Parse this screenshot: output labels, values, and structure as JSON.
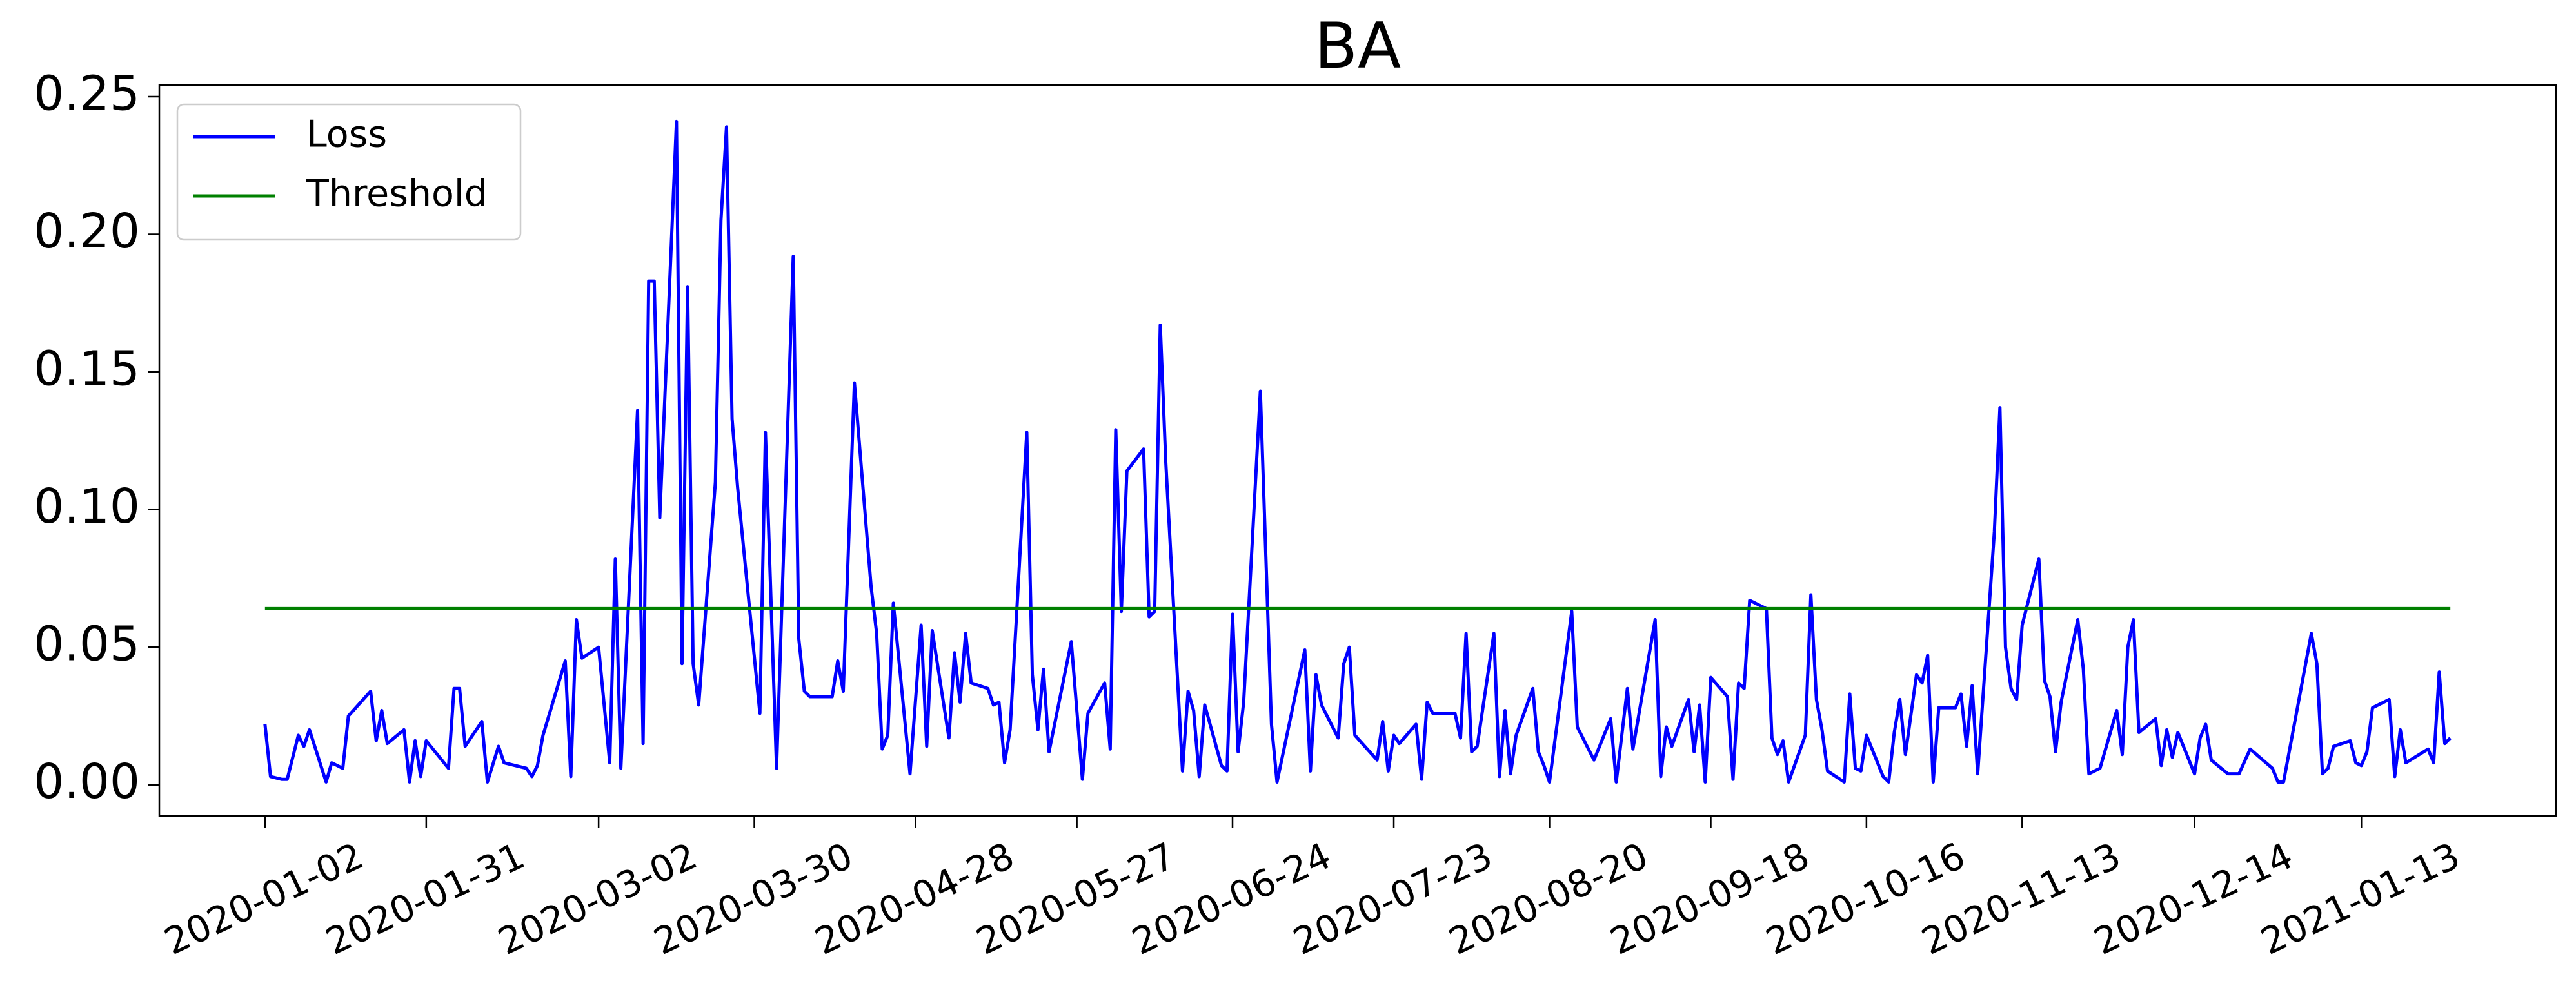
{
  "chart_data": {
    "type": "line",
    "title": "BA",
    "xlim": [
      "2019-12-14",
      "2021-02-17"
    ],
    "ylim": [
      -0.0113,
      0.2542
    ],
    "xticks": [
      "2020-01-02",
      "2020-01-31",
      "2020-03-02",
      "2020-03-30",
      "2020-04-28",
      "2020-05-27",
      "2020-06-24",
      "2020-07-23",
      "2020-08-20",
      "2020-09-18",
      "2020-10-16",
      "2020-11-13",
      "2020-12-14",
      "2021-01-13"
    ],
    "yticks": [
      {
        "value": 0,
        "label": "0.00"
      },
      {
        "value": 0.05,
        "label": "0.05"
      },
      {
        "value": 0.1,
        "label": "0.10"
      },
      {
        "value": 0.15,
        "label": "0.15"
      },
      {
        "value": 0.2,
        "label": "0.20"
      },
      {
        "value": 0.25,
        "label": "0.25"
      }
    ],
    "grid": false,
    "legend": "upper left",
    "series": [
      {
        "name": "Loss",
        "color": "#0000ff",
        "x": [
          "2020-01-02",
          "2020-01-03",
          "2020-01-05",
          "2020-01-06",
          "2020-01-08",
          "2020-01-09",
          "2020-01-10",
          "2020-01-13",
          "2020-01-14",
          "2020-01-16",
          "2020-01-17",
          "2020-01-21",
          "2020-01-22",
          "2020-01-23",
          "2020-01-24",
          "2020-01-27",
          "2020-01-28",
          "2020-01-29",
          "2020-01-30",
          "2020-01-31",
          "2020-02-04",
          "2020-02-05",
          "2020-02-06",
          "2020-02-07",
          "2020-02-10",
          "2020-02-11",
          "2020-02-13",
          "2020-02-14",
          "2020-02-18",
          "2020-02-19",
          "2020-02-20",
          "2020-02-21",
          "2020-02-25",
          "2020-02-26",
          "2020-02-27",
          "2020-02-28",
          "2020-03-02",
          "2020-03-04",
          "2020-03-05",
          "2020-03-06",
          "2020-03-09",
          "2020-03-10",
          "2020-03-11",
          "2020-03-12",
          "2020-03-13",
          "2020-03-16",
          "2020-03-17",
          "2020-03-18",
          "2020-03-19",
          "2020-03-20",
          "2020-03-23",
          "2020-03-24",
          "2020-03-25",
          "2020-03-26",
          "2020-03-27",
          "2020-03-31",
          "2020-04-01",
          "2020-04-03",
          "2020-04-06",
          "2020-04-07",
          "2020-04-08",
          "2020-04-09",
          "2020-04-13",
          "2020-04-14",
          "2020-04-15",
          "2020-04-17",
          "2020-04-20",
          "2020-04-21",
          "2020-04-22",
          "2020-04-23",
          "2020-04-24",
          "2020-04-27",
          "2020-04-29",
          "2020-04-30",
          "2020-05-01",
          "2020-05-04",
          "2020-05-05",
          "2020-05-06",
          "2020-05-07",
          "2020-05-08",
          "2020-05-11",
          "2020-05-12",
          "2020-05-13",
          "2020-05-14",
          "2020-05-15",
          "2020-05-18",
          "2020-05-19",
          "2020-05-20",
          "2020-05-21",
          "2020-05-22",
          "2020-05-26",
          "2020-05-28",
          "2020-05-29",
          "2020-06-01",
          "2020-06-02",
          "2020-06-03",
          "2020-06-04",
          "2020-06-05",
          "2020-06-08",
          "2020-06-09",
          "2020-06-10",
          "2020-06-11",
          "2020-06-12",
          "2020-06-15",
          "2020-06-16",
          "2020-06-17",
          "2020-06-18",
          "2020-06-19",
          "2020-06-22",
          "2020-06-23",
          "2020-06-24",
          "2020-06-25",
          "2020-06-26",
          "2020-06-29",
          "2020-07-01",
          "2020-07-02",
          "2020-07-07",
          "2020-07-08",
          "2020-07-09",
          "2020-07-10",
          "2020-07-13",
          "2020-07-14",
          "2020-07-15",
          "2020-07-16",
          "2020-07-20",
          "2020-07-21",
          "2020-07-22",
          "2020-07-23",
          "2020-07-24",
          "2020-07-27",
          "2020-07-28",
          "2020-07-29",
          "2020-07-30",
          "2020-08-03",
          "2020-08-04",
          "2020-08-05",
          "2020-08-06",
          "2020-08-07",
          "2020-08-10",
          "2020-08-11",
          "2020-08-12",
          "2020-08-13",
          "2020-08-14",
          "2020-08-17",
          "2020-08-18",
          "2020-08-19",
          "2020-08-20",
          "2020-08-24",
          "2020-08-25",
          "2020-08-28",
          "2020-08-31",
          "2020-09-01",
          "2020-09-03",
          "2020-09-04",
          "2020-09-08",
          "2020-09-09",
          "2020-09-10",
          "2020-09-11",
          "2020-09-14",
          "2020-09-15",
          "2020-09-16",
          "2020-09-17",
          "2020-09-18",
          "2020-09-21",
          "2020-09-22",
          "2020-09-23",
          "2020-09-24",
          "2020-09-25",
          "2020-09-28",
          "2020-09-29",
          "2020-09-30",
          "2020-10-01",
          "2020-10-02",
          "2020-10-05",
          "2020-10-06",
          "2020-10-07",
          "2020-10-08",
          "2020-10-09",
          "2020-10-12",
          "2020-10-13",
          "2020-10-14",
          "2020-10-15",
          "2020-10-16",
          "2020-10-19",
          "2020-10-20",
          "2020-10-21",
          "2020-10-22",
          "2020-10-23",
          "2020-10-25",
          "2020-10-26",
          "2020-10-27",
          "2020-10-28",
          "2020-10-29",
          "2020-11-01",
          "2020-11-02",
          "2020-11-03",
          "2020-11-04",
          "2020-11-05",
          "2020-11-08",
          "2020-11-09",
          "2020-11-10",
          "2020-11-11",
          "2020-11-12",
          "2020-11-13",
          "2020-11-16",
          "2020-11-17",
          "2020-11-18",
          "2020-11-19",
          "2020-11-20",
          "2020-11-23",
          "2020-11-24",
          "2020-11-25",
          "2020-11-27",
          "2020-11-30",
          "2020-12-01",
          "2020-12-02",
          "2020-12-03",
          "2020-12-04",
          "2020-12-07",
          "2020-12-08",
          "2020-12-09",
          "2020-12-10",
          "2020-12-11",
          "2020-12-14",
          "2020-12-15",
          "2020-12-16",
          "2020-12-17",
          "2020-12-20",
          "2020-12-22",
          "2020-12-24",
          "2020-12-28",
          "2020-12-29",
          "2020-12-30",
          "2021-01-04",
          "2021-01-05",
          "2021-01-06",
          "2021-01-07",
          "2021-01-08",
          "2021-01-11",
          "2021-01-12",
          "2021-01-13",
          "2021-01-14",
          "2021-01-15",
          "2021-01-18",
          "2021-01-19",
          "2021-01-20",
          "2021-01-21",
          "2021-01-25",
          "2021-01-26",
          "2021-01-27",
          "2021-01-28",
          "2021-01-29"
        ],
        "values": [
          0.022,
          0.003,
          0.002,
          0.002,
          0.018,
          0.014,
          0.02,
          0.001,
          0.008,
          0.006,
          0.025,
          0.034,
          0.016,
          0.027,
          0.015,
          0.02,
          0.001,
          0.016,
          0.003,
          0.016,
          0.006,
          0.035,
          0.035,
          0.014,
          0.023,
          0.001,
          0.014,
          0.008,
          0.006,
          0.003,
          0.007,
          0.018,
          0.045,
          0.003,
          0.06,
          0.046,
          0.05,
          0.008,
          0.082,
          0.006,
          0.136,
          0.015,
          0.183,
          0.183,
          0.097,
          0.241,
          0.044,
          0.181,
          0.044,
          0.029,
          0.11,
          0.205,
          0.239,
          0.133,
          0.108,
          0.026,
          0.128,
          0.006,
          0.192,
          0.053,
          0.034,
          0.032,
          0.032,
          0.045,
          0.034,
          0.146,
          0.072,
          0.055,
          0.013,
          0.018,
          0.066,
          0.004,
          0.058,
          0.014,
          0.056,
          0.017,
          0.048,
          0.03,
          0.055,
          0.037,
          0.035,
          0.029,
          0.03,
          0.008,
          0.02,
          0.128,
          0.04,
          0.02,
          0.042,
          0.012,
          0.052,
          0.002,
          0.026,
          0.037,
          0.013,
          0.129,
          0.063,
          0.114,
          0.122,
          0.061,
          0.063,
          0.167,
          0.117,
          0.005,
          0.034,
          0.027,
          0.003,
          0.029,
          0.007,
          0.005,
          0.062,
          0.012,
          0.03,
          0.143,
          0.022,
          0.001,
          0.049,
          0.005,
          0.04,
          0.029,
          0.017,
          0.044,
          0.05,
          0.018,
          0.009,
          0.023,
          0.005,
          0.018,
          0.015,
          0.022,
          0.002,
          0.03,
          0.026,
          0.026,
          0.017,
          0.055,
          0.012,
          0.014,
          0.055,
          0.003,
          0.027,
          0.004,
          0.018,
          0.035,
          0.012,
          0.007,
          0.001,
          0.063,
          0.021,
          0.009,
          0.024,
          0.001,
          0.035,
          0.013,
          0.06,
          0.003,
          0.021,
          0.014,
          0.031,
          0.012,
          0.029,
          0.001,
          0.039,
          0.032,
          0.002,
          0.037,
          0.035,
          0.067,
          0.064,
          0.017,
          0.011,
          0.016,
          0.001,
          0.018,
          0.069,
          0.031,
          0.02,
          0.005,
          0.001,
          0.033,
          0.006,
          0.005,
          0.018,
          0.003,
          0.001,
          0.019,
          0.031,
          0.011,
          0.04,
          0.037,
          0.047,
          0.001,
          0.028,
          0.028,
          0.033,
          0.014,
          0.036,
          0.004,
          0.092,
          0.137,
          0.05,
          0.035,
          0.031,
          0.058,
          0.082,
          0.038,
          0.032,
          0.012,
          0.03,
          0.06,
          0.042,
          0.004,
          0.006,
          0.027,
          0.011,
          0.05,
          0.06,
          0.019,
          0.024,
          0.007,
          0.02,
          0.01,
          0.019,
          0.004,
          0.017,
          0.022,
          0.009,
          0.004,
          0.004,
          0.013,
          0.006,
          0.001,
          0.001,
          0.055,
          0.044,
          0.004,
          0.006,
          0.014,
          0.016,
          0.008,
          0.007,
          0.012,
          0.028,
          0.031,
          0.003,
          0.02,
          0.008,
          0.013,
          0.008,
          0.041,
          0.015,
          0.017
        ]
      },
      {
        "name": "Threshold",
        "color": "#008000",
        "x": [
          "2020-01-02",
          "2021-01-29"
        ],
        "values": [
          0.064,
          0.064
        ]
      }
    ]
  }
}
